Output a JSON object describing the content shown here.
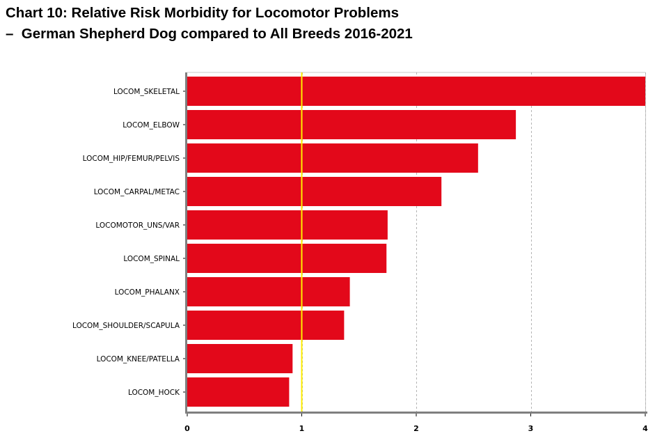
{
  "chart_data": {
    "type": "bar",
    "orientation": "horizontal",
    "title_line1": "Chart 10: Relative Risk Morbidity for Locomotor Problems",
    "title_line2": "–  German Shepherd Dog compared to All Breeds 2016-2021",
    "categories": [
      "LOCOM_SKELETAL",
      "LOCOM_ELBOW",
      "LOCOM_HIP/FEMUR/PELVIS",
      "LOCOM_CARPAL/METAC",
      "LOCOMOTOR_UNS/VAR",
      "LOCOM_SPINAL",
      "LOCOM_PHALANX",
      "LOCOM_SHOULDER/SCAPULA",
      "LOCOM_KNEE/PATELLA",
      "LOCOM_HOCK"
    ],
    "values": [
      4.0,
      2.87,
      2.54,
      2.22,
      1.75,
      1.74,
      1.42,
      1.37,
      0.92,
      0.89
    ],
    "xlim": [
      0,
      4
    ],
    "xticks": [
      "0",
      "1",
      "2",
      "3",
      "4"
    ],
    "reference_line": 1,
    "xlabel": "",
    "ylabel": "",
    "grid": "vertical dashed",
    "colors": {
      "bar": "#e3081a",
      "reference": "#ffee00",
      "grid": "#b4b4b4",
      "axis": "#7f7f7f"
    }
  }
}
